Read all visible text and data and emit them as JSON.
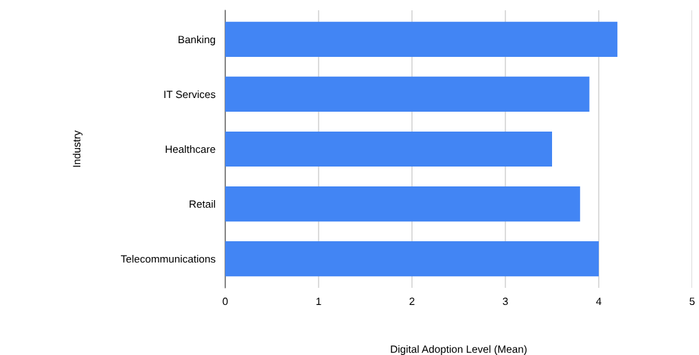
{
  "chart_data": {
    "type": "bar",
    "orientation": "horizontal",
    "categories": [
      "Banking",
      "IT Services",
      "Healthcare",
      "Retail",
      "Telecommunications"
    ],
    "values": [
      4.2,
      3.9,
      3.5,
      3.8,
      4.0
    ],
    "color": "#4285f4",
    "xlabel": "Digital Adoption Level (Mean)",
    "ylabel": "Industry",
    "xlim": [
      0,
      5
    ],
    "xticks": [
      0,
      1,
      2,
      3,
      4,
      5
    ],
    "grid": "x"
  }
}
